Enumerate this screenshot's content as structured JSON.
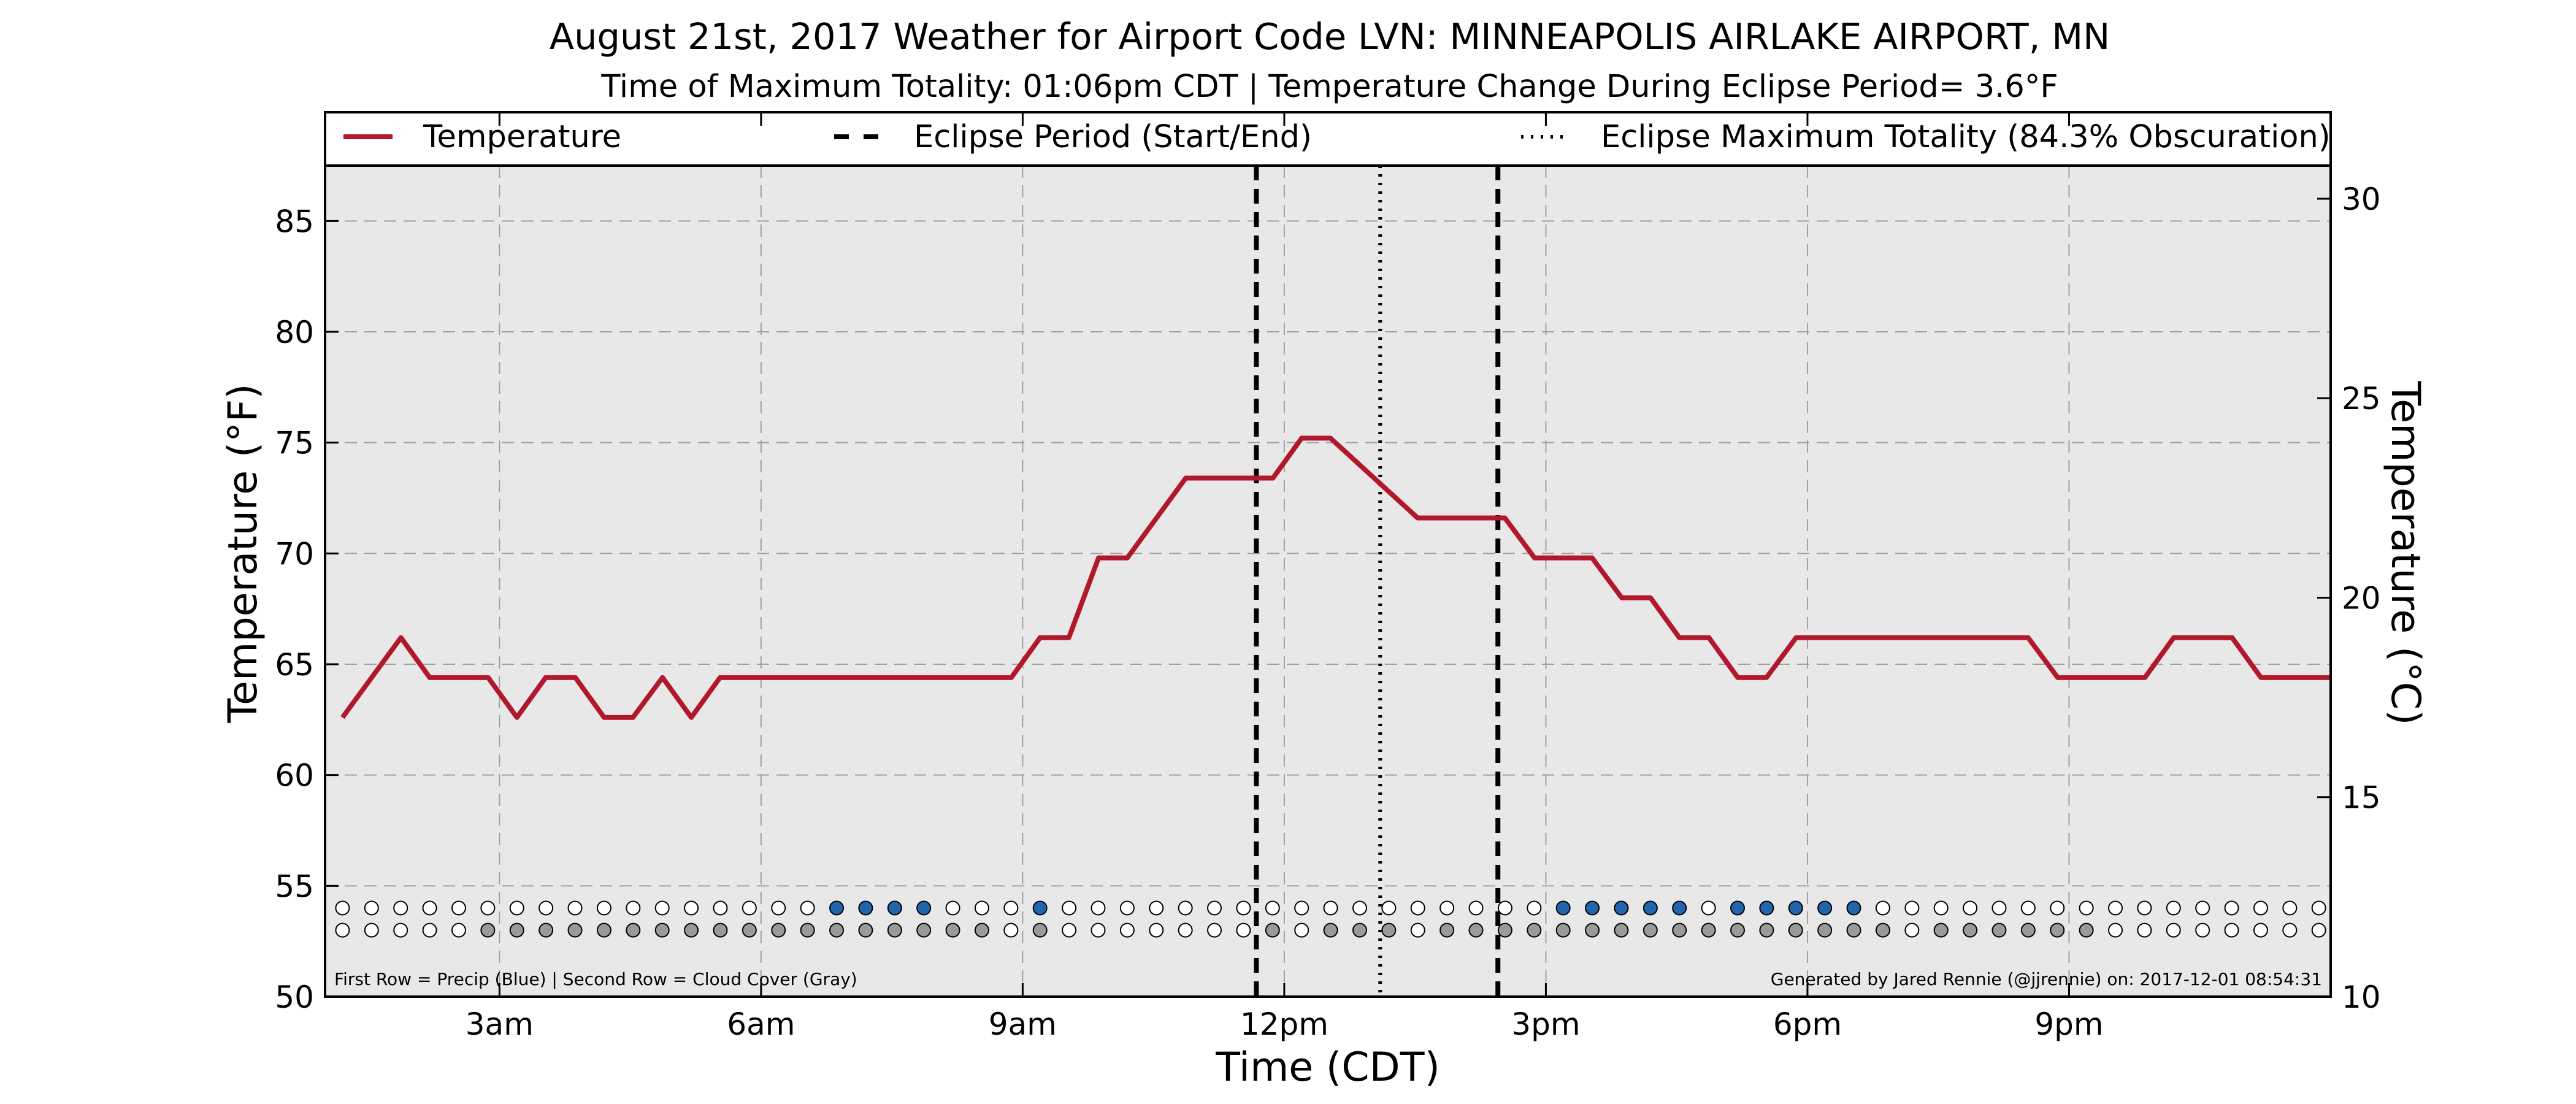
{
  "colors": {
    "temperature": "#b2182b",
    "precip": "#2166ac",
    "cloud": "#9a9a9a",
    "clear": "#ffffff",
    "plot_bg": "#e8e8e8"
  },
  "chart_data": {
    "type": "line",
    "title": "August 21st, 2017 Weather for Airport Code LVN: MINNEAPOLIS AIRLAKE AIRPORT, MN",
    "subtitle": "Time of Maximum Totality: 01:06pm CDT | Temperature Change During Eclipse Period= 3.6°F",
    "xlabel": "Time (CDT)",
    "ylabel": "Temperature (°F)",
    "ylabel_right": "Temperature (°C)",
    "xlim": [
      1.0,
      24.0
    ],
    "ylim": [
      50,
      87.5
    ],
    "ylim_right": [
      10,
      30.83
    ],
    "grid": true,
    "legend_placement": "top",
    "x_ticks": [
      {
        "x": 3,
        "label": "3am"
      },
      {
        "x": 6,
        "label": "6am"
      },
      {
        "x": 9,
        "label": "9am"
      },
      {
        "x": 12,
        "label": "12pm"
      },
      {
        "x": 15,
        "label": "3pm"
      },
      {
        "x": 18,
        "label": "6pm"
      },
      {
        "x": 21,
        "label": "9pm"
      }
    ],
    "y_ticks": [
      50,
      55,
      60,
      65,
      70,
      75,
      80,
      85
    ],
    "y_ticks_right": [
      10,
      15,
      20,
      25,
      30
    ],
    "legend": [
      {
        "label": "Temperature",
        "style": "solid"
      },
      {
        "label": "Eclipse Period (Start/End)",
        "style": "dashed"
      },
      {
        "label": "Eclipse Maximum Totality (84.3% Obscuration)",
        "style": "dotted"
      }
    ],
    "series": [
      {
        "name": "Temperature",
        "points": [
          [
            1.2,
            62.6
          ],
          [
            1.87,
            66.2
          ],
          [
            2.2,
            64.4
          ],
          [
            2.87,
            64.4
          ],
          [
            3.2,
            62.6
          ],
          [
            3.53,
            64.4
          ],
          [
            3.87,
            64.4
          ],
          [
            4.2,
            62.6
          ],
          [
            4.53,
            62.6
          ],
          [
            4.87,
            64.4
          ],
          [
            5.2,
            62.6
          ],
          [
            5.53,
            64.4
          ],
          [
            8.87,
            64.4
          ],
          [
            9.2,
            66.2
          ],
          [
            9.53,
            66.2
          ],
          [
            9.87,
            69.8
          ],
          [
            10.2,
            69.8
          ],
          [
            10.87,
            73.4
          ],
          [
            11.87,
            73.4
          ],
          [
            12.2,
            75.2
          ],
          [
            12.53,
            75.2
          ],
          [
            13.53,
            71.6
          ],
          [
            14.53,
            71.6
          ],
          [
            14.87,
            69.8
          ],
          [
            15.2,
            69.8
          ],
          [
            15.53,
            69.8
          ],
          [
            15.87,
            68.0
          ],
          [
            16.2,
            68.0
          ],
          [
            16.53,
            66.2
          ],
          [
            16.87,
            66.2
          ],
          [
            17.2,
            64.4
          ],
          [
            17.53,
            64.4
          ],
          [
            17.87,
            66.2
          ],
          [
            19.2,
            66.2
          ],
          [
            20.53,
            66.2
          ],
          [
            20.87,
            64.4
          ],
          [
            21.87,
            64.4
          ],
          [
            22.2,
            66.2
          ],
          [
            22.87,
            66.2
          ],
          [
            23.2,
            64.4
          ],
          [
            24.0,
            64.4
          ]
        ]
      }
    ],
    "eclipse_start": 11.68,
    "eclipse_end": 14.45,
    "eclipse_max": 13.1,
    "observations": {
      "start": 1.2,
      "step": 0.3333,
      "precip_y": 54.0,
      "cloud_y": 53.0,
      "precip_indices": [
        17,
        18,
        19,
        20,
        24,
        42,
        43,
        44,
        45,
        46,
        48,
        49,
        50,
        51,
        52
      ],
      "cloud_indices": [
        5,
        6,
        7,
        8,
        9,
        10,
        11,
        12,
        13,
        14,
        15,
        16,
        17,
        18,
        19,
        20,
        21,
        22,
        24,
        32,
        34,
        35,
        36,
        38,
        39,
        40,
        41,
        42,
        43,
        44,
        45,
        46,
        47,
        48,
        49,
        50,
        51,
        52,
        53,
        55,
        56,
        57,
        58,
        59,
        60
      ],
      "count": 69
    },
    "notes": {
      "left": "First Row = Precip (Blue) | Second Row = Cloud Cover (Gray)",
      "right": "Generated by Jared Rennie (@jjrennie) on: 2017-12-01 08:54:31"
    }
  }
}
